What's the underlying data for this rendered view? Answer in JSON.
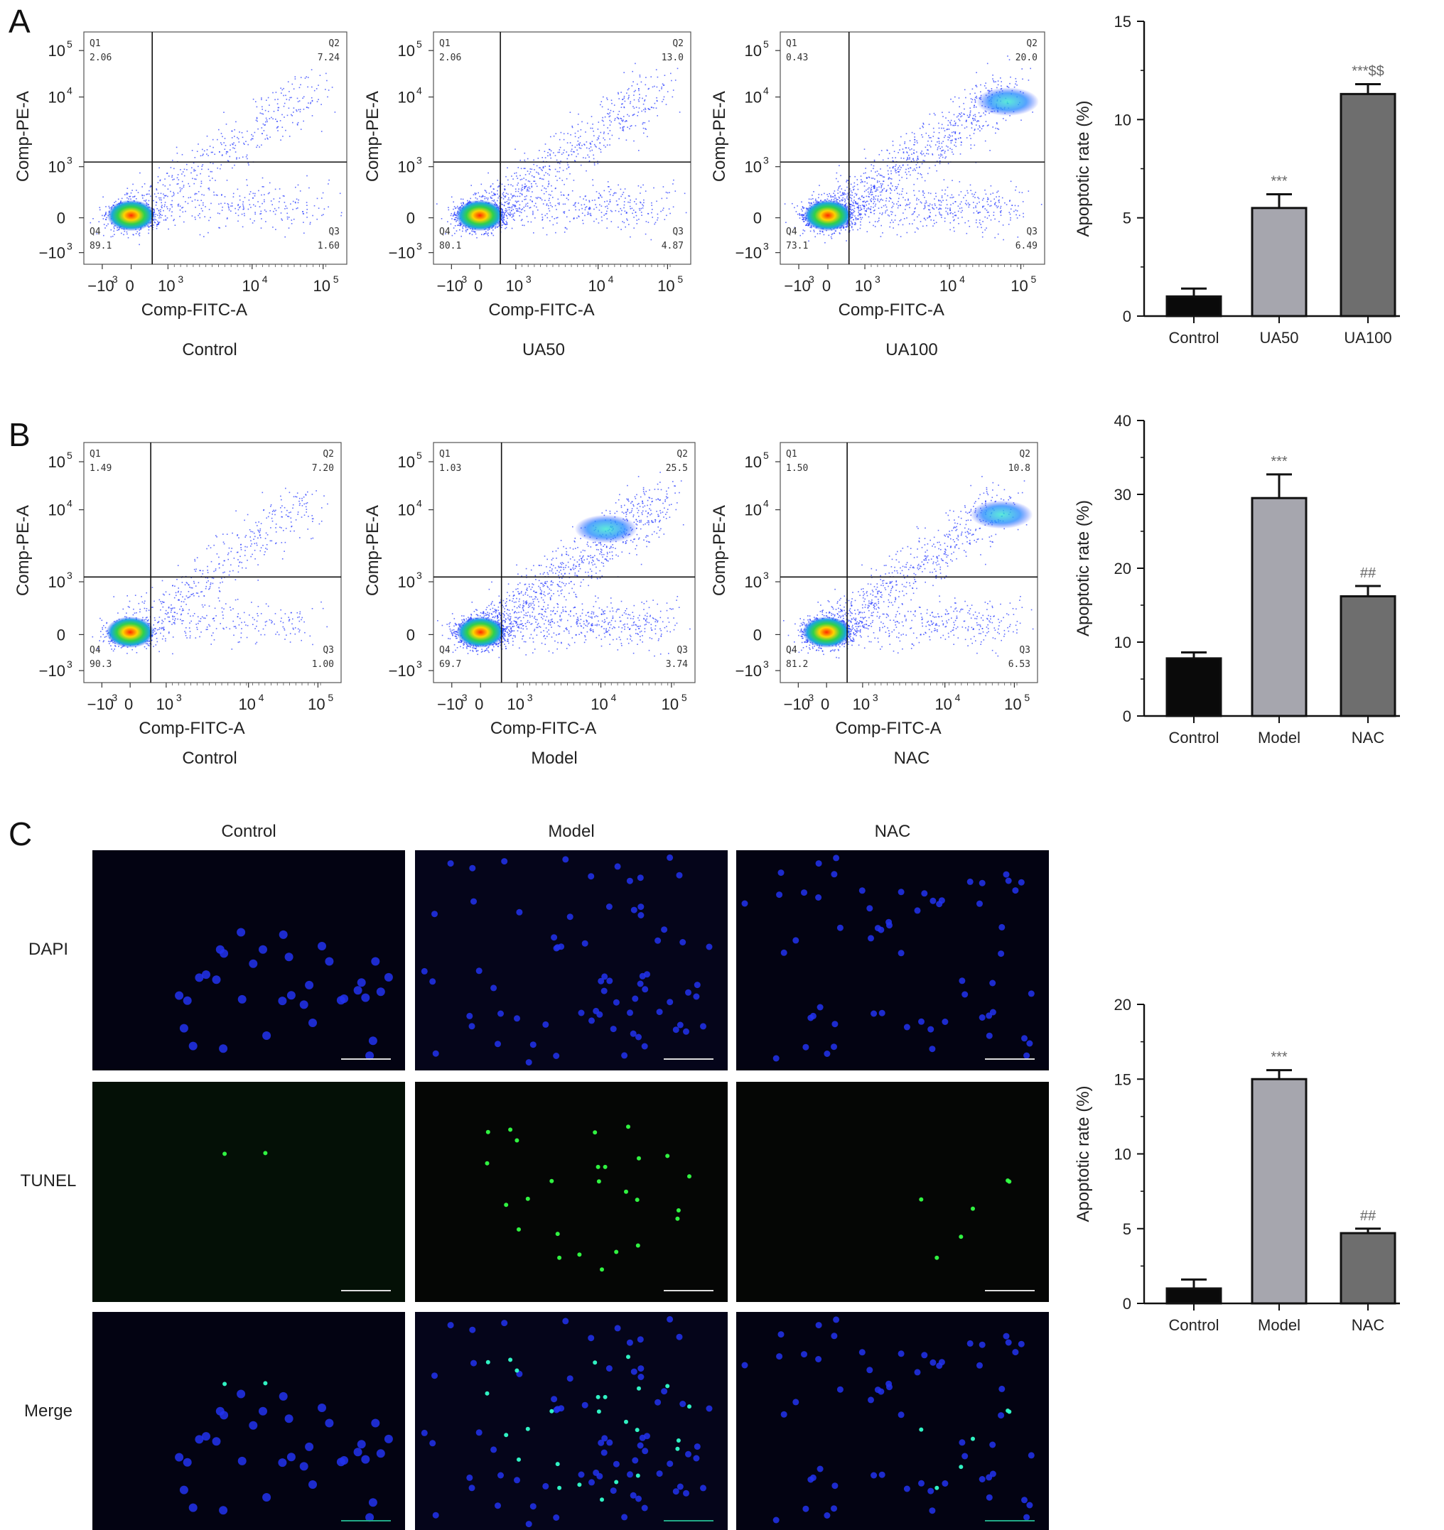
{
  "panels": {
    "a": {
      "label": "A"
    },
    "b": {
      "label": "B"
    },
    "c": {
      "label": "C"
    }
  },
  "flow_axes": {
    "xlabel": "Comp-FITC-A",
    "ylabel": "Comp-PE-A",
    "ticks": [
      "−10",
      "0",
      "10",
      "10",
      "10"
    ],
    "tick_exponents": [
      "3",
      "",
      "3",
      "4",
      "5"
    ]
  },
  "flow_plots": [
    {
      "id": "a1",
      "caption": "Control",
      "quadrants": [
        {
          "name": "Q1",
          "value": "2.06"
        },
        {
          "name": "Q2",
          "value": "7.24"
        },
        {
          "name": "Q3",
          "value": "1.60"
        },
        {
          "name": "Q4",
          "value": "89.1"
        }
      ]
    },
    {
      "id": "a2",
      "caption": "UA50",
      "quadrants": [
        {
          "name": "Q1",
          "value": "2.06"
        },
        {
          "name": "Q2",
          "value": "13.0"
        },
        {
          "name": "Q3",
          "value": "4.87"
        },
        {
          "name": "Q4",
          "value": "80.1"
        }
      ]
    },
    {
      "id": "a3",
      "caption": "UA100",
      "quadrants": [
        {
          "name": "Q1",
          "value": "0.43"
        },
        {
          "name": "Q2",
          "value": "20.0"
        },
        {
          "name": "Q3",
          "value": "6.49"
        },
        {
          "name": "Q4",
          "value": "73.1"
        }
      ]
    },
    {
      "id": "b1",
      "caption": "Control",
      "quadrants": [
        {
          "name": "Q1",
          "value": "1.49"
        },
        {
          "name": "Q2",
          "value": "7.20"
        },
        {
          "name": "Q3",
          "value": "1.00"
        },
        {
          "name": "Q4",
          "value": "90.3"
        }
      ]
    },
    {
      "id": "b2",
      "caption": "Model",
      "quadrants": [
        {
          "name": "Q1",
          "value": "1.03"
        },
        {
          "name": "Q2",
          "value": "25.5"
        },
        {
          "name": "Q3",
          "value": "3.74"
        },
        {
          "name": "Q4",
          "value": "69.7"
        }
      ]
    },
    {
      "id": "b3",
      "caption": "NAC",
      "quadrants": [
        {
          "name": "Q1",
          "value": "1.50"
        },
        {
          "name": "Q2",
          "value": "10.8"
        },
        {
          "name": "Q3",
          "value": "6.53"
        },
        {
          "name": "Q4",
          "value": "81.2"
        }
      ]
    }
  ],
  "microscopy": {
    "columns": [
      "Control",
      "Model",
      "NAC"
    ],
    "rows": [
      "DAPI",
      "TUNEL",
      "Merge"
    ]
  },
  "chart_data": [
    {
      "type": "bar",
      "ylabel": "Apoptotic rate (%)",
      "categories": [
        "Control",
        "UA50",
        "UA100"
      ],
      "values": [
        1.0,
        5.5,
        11.3
      ],
      "errors": [
        0.4,
        0.7,
        0.5
      ],
      "annotations": [
        "",
        "***",
        "***$$"
      ],
      "ylim": [
        0,
        15
      ],
      "yticks": [
        "0",
        "5",
        "10",
        "15"
      ],
      "colors": [
        "#0a0a0a",
        "#a6a6ae",
        "#6e6e6e"
      ]
    },
    {
      "type": "bar",
      "ylabel": "Apoptotic rate (%)",
      "categories": [
        "Control",
        "Model",
        "NAC"
      ],
      "values": [
        7.8,
        29.5,
        16.2
      ],
      "errors": [
        0.8,
        3.2,
        1.4
      ],
      "annotations": [
        "",
        "***",
        "##"
      ],
      "ylim": [
        0,
        40
      ],
      "yticks": [
        "0",
        "10",
        "20",
        "30",
        "40"
      ],
      "colors": [
        "#0a0a0a",
        "#a6a6ae",
        "#6e6e6e"
      ]
    },
    {
      "type": "bar",
      "ylabel": "Apoptotic rate (%)",
      "categories": [
        "Control",
        "Model",
        "NAC"
      ],
      "values": [
        1.0,
        15.0,
        4.7
      ],
      "errors": [
        0.6,
        0.6,
        0.3
      ],
      "annotations": [
        "",
        "***",
        "##"
      ],
      "ylim": [
        0,
        20
      ],
      "yticks": [
        "0",
        "5",
        "10",
        "15",
        "20"
      ],
      "colors": [
        "#0a0a0a",
        "#a6a6ae",
        "#6e6e6e"
      ]
    }
  ]
}
